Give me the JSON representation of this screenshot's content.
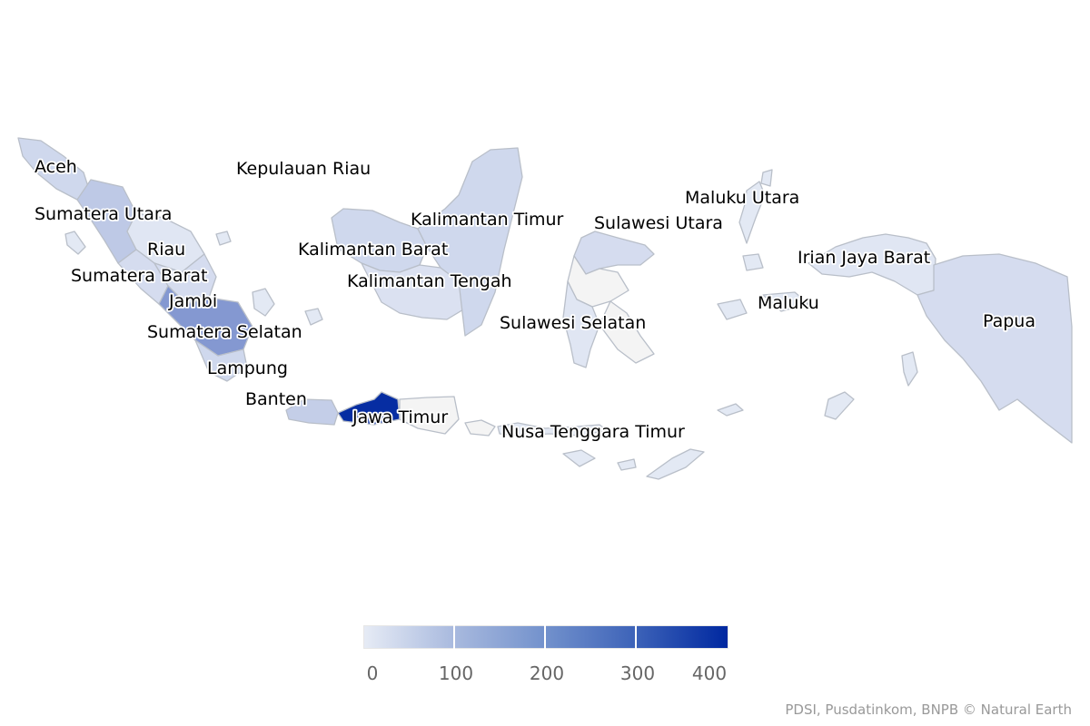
{
  "map": {
    "regions": [
      {
        "id": "aceh",
        "name": "Aceh",
        "value": 40
      },
      {
        "id": "sumatera-utara",
        "name": "Sumatera Utara",
        "value": 70
      },
      {
        "id": "riau",
        "name": "Riau",
        "value": 10
      },
      {
        "id": "sumatera-barat",
        "name": "Sumatera Barat",
        "value": 30
      },
      {
        "id": "jambi",
        "name": "Jambi",
        "value": 30
      },
      {
        "id": "sumatera-selatan",
        "name": "Sumatera Selatan",
        "value": 170
      },
      {
        "id": "lampung",
        "name": "Lampung",
        "value": 40
      },
      {
        "id": "kepulauan-riau",
        "name": "Kepulauan Riau",
        "value": 5
      },
      {
        "id": "banten",
        "name": "Banten",
        "value": 60
      },
      {
        "id": "jawa-timur",
        "name": "Jawa Timur",
        "value": 390
      },
      {
        "id": "kalimantan-barat",
        "name": "Kalimantan Barat",
        "value": 40
      },
      {
        "id": "kalimantan-tengah",
        "name": "Kalimantan Tengah",
        "value": 20
      },
      {
        "id": "kalimantan-timur",
        "name": "Kalimantan Timur",
        "value": 40
      },
      {
        "id": "sulawesi-utara",
        "name": "Sulawesi Utara",
        "value": 30
      },
      {
        "id": "sulawesi-selatan",
        "name": "Sulawesi Selatan",
        "value": 10
      },
      {
        "id": "maluku-utara",
        "name": "Maluku Utara",
        "value": 5
      },
      {
        "id": "maluku",
        "name": "Maluku",
        "value": 5
      },
      {
        "id": "irian-jaya-barat",
        "name": "Irian Jaya Barat",
        "value": 10
      },
      {
        "id": "papua",
        "name": "Papua",
        "value": 30
      },
      {
        "id": "nusa-tenggara-timur",
        "name": "Nusa Tenggara Timur",
        "value": 5
      }
    ]
  },
  "colors": {
    "min": "#e6ebf5",
    "max": "#0028a0",
    "no_data": "#f4f4f4",
    "border": "#b9bfc9"
  },
  "legend": {
    "min": 0,
    "max": 400,
    "ticks": [
      "0",
      "100",
      "200",
      "300",
      "400"
    ]
  },
  "credits": "PDSI, Pusdatinkom, BNPB © Natural Earth"
}
